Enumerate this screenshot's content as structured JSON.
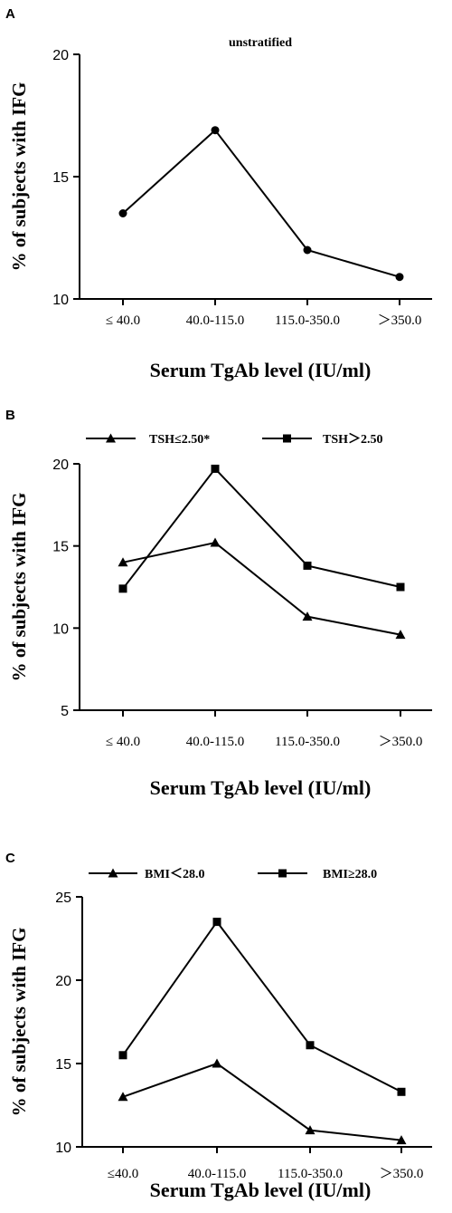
{
  "chart_data": [
    {
      "panel": "A",
      "type": "line",
      "title": "unstratified",
      "xlabel": "Serum TgAb level (IU/ml)",
      "ylabel": "% of subjects with IFG",
      "categories": [
        "≤ 40.0",
        "40.0-115.0",
        "115.0-350.0",
        "＞350.0"
      ],
      "yticks": [
        "10",
        "15",
        "20"
      ],
      "ylim": [
        10,
        20
      ],
      "series": [
        {
          "values": [
            13.5,
            16.9,
            12.0,
            10.9
          ],
          "marker": "circle"
        }
      ]
    },
    {
      "panel": "B",
      "type": "line",
      "xlabel": "Serum TgAb level (IU/ml)",
      "ylabel": "% of subjects with IFG",
      "categories": [
        "≤ 40.0",
        "40.0-115.0",
        "115.0-350.0",
        "＞350.0"
      ],
      "yticks": [
        "5",
        "10",
        "15",
        "20"
      ],
      "ylim": [
        5,
        20
      ],
      "legend_position": "top",
      "series": [
        {
          "name": "TSH≤2.50*",
          "values": [
            14.0,
            15.2,
            10.7,
            9.6
          ],
          "marker": "triangle"
        },
        {
          "name": "TSH＞2.50",
          "values": [
            12.4,
            19.7,
            13.8,
            12.5
          ],
          "marker": "square"
        }
      ]
    },
    {
      "panel": "C",
      "type": "line",
      "xlabel": "Serum TgAb level (IU/ml)",
      "ylabel": "% of subjects with IFG",
      "categories": [
        "≤40.0",
        "40.0-115.0",
        "115.0-350.0",
        "＞350.0"
      ],
      "yticks": [
        "10",
        "15",
        "20",
        "25"
      ],
      "ylim": [
        10,
        25
      ],
      "legend_position": "top",
      "series": [
        {
          "name": "BMI＜28.0",
          "values": [
            13.0,
            15.0,
            11.0,
            10.4
          ],
          "marker": "triangle"
        },
        {
          "name": "BMI≥28.0",
          "values": [
            15.5,
            23.5,
            16.1,
            13.3
          ],
          "marker": "square"
        }
      ]
    }
  ],
  "colors": {
    "line": "#000000",
    "marker": "#000000"
  }
}
